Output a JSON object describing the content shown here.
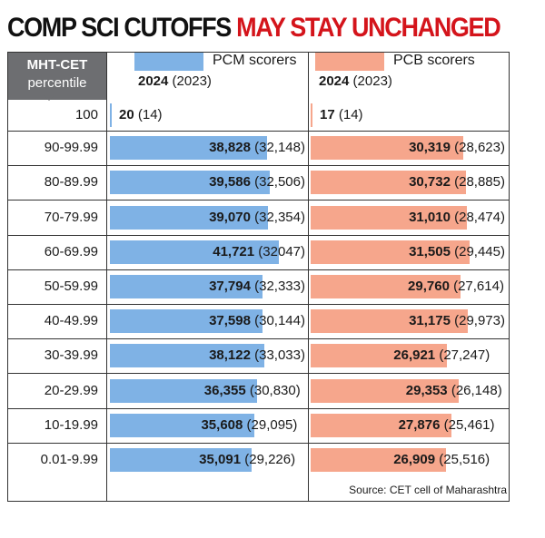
{
  "headline": {
    "part1": "COMP SCI CUTOFFS ",
    "part2": "MAY STAY UNCHANGED"
  },
  "header": {
    "col1_line1": "MHT-CET",
    "col1_line2": "percentile",
    "series": [
      {
        "label": "PCM scorers",
        "year_main": "2024",
        "year_prev": "(2023)"
      },
      {
        "label": "PCB scorers",
        "year_main": "2024",
        "year_prev": "(2023)"
      }
    ]
  },
  "colors": {
    "pcm_bar": "#7fb2e5",
    "pcb_bar": "#f6a68c",
    "header_bg": "#6d6e71",
    "headline_red": "#d4141b"
  },
  "chart_data": {
    "type": "table",
    "categories": [
      "100",
      "90-99.99",
      "80-89.99",
      "70-79.99",
      "60-69.99",
      "50-59.99",
      "40-49.99",
      "30-39.99",
      "20-29.99",
      "10-19.99",
      "0.01-9.99"
    ],
    "series": [
      {
        "name": "PCM scorers",
        "values_2024": [
          20,
          38828,
          39586,
          39070,
          41721,
          37794,
          37598,
          38122,
          36355,
          35608,
          35091
        ],
        "labels_2024": [
          "20",
          "38,828",
          "39,586",
          "39,070",
          "41,721",
          "37,794",
          "37,598",
          "38,122",
          "36,355",
          "35,608",
          "35,091"
        ],
        "labels_2023": [
          "(14)",
          "(32,148)",
          "(32,506)",
          "(32,354)",
          "(32047)",
          "(32,333)",
          "(30,144)",
          "(33,033)",
          "(30,830)",
          "(29,095)",
          "(29,226)"
        ]
      },
      {
        "name": "PCB scorers",
        "values_2024": [
          17,
          30319,
          30732,
          31010,
          31505,
          29760,
          31175,
          26921,
          29353,
          27876,
          26909
        ],
        "labels_2024": [
          "17",
          "30,319",
          "30,732",
          "31,010",
          "31,505",
          "29,760",
          "31,175",
          "26,921",
          "29,353",
          "27,876",
          "26,909"
        ],
        "labels_2023": [
          "(14)",
          "(28,623)",
          "(28,885)",
          "(28,474)",
          "(29,445)",
          "(27,614)",
          "(29,973)",
          "(27,247)",
          "(26,148)",
          "(25,461)",
          "(25,516)"
        ]
      }
    ]
  },
  "source": "Source: CET cell of Maharashtra"
}
